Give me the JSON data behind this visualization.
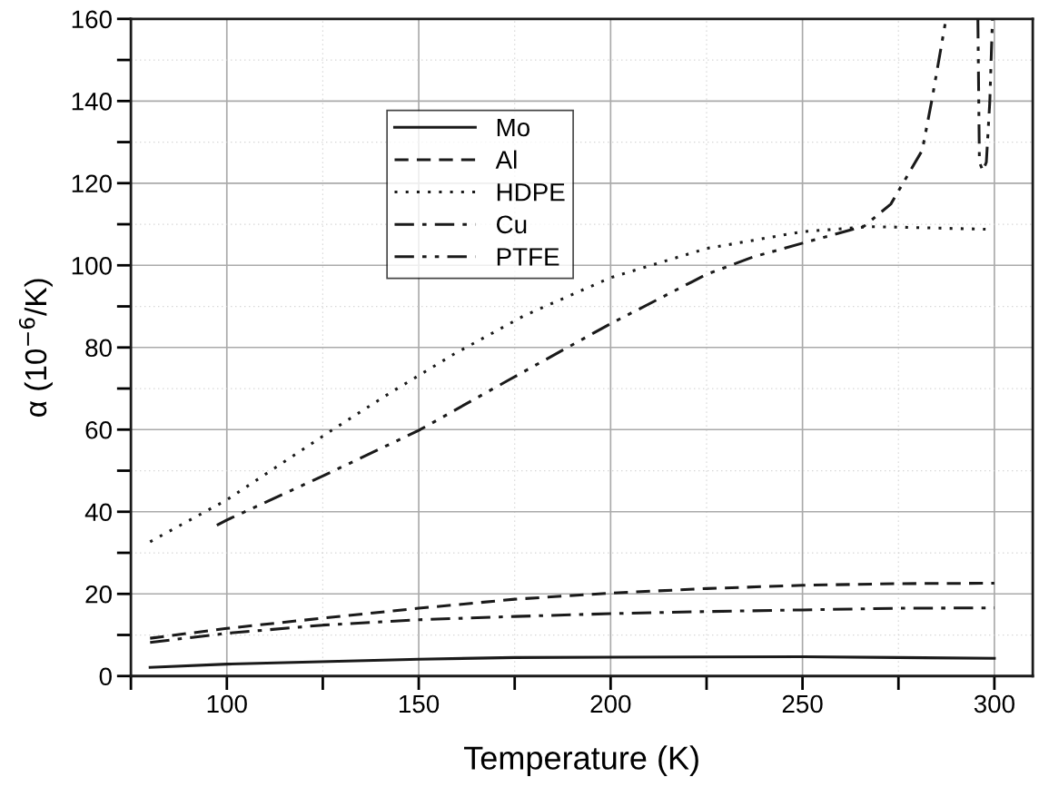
{
  "chart_data": {
    "type": "line",
    "xlabel": "Temperature (K)",
    "ylabel": "α (10$^{−6}$/K)",
    "xlim": [
      75,
      310
    ],
    "ylim": [
      0,
      160
    ],
    "xticks": [
      {
        "value": 75,
        "label": null
      },
      100,
      {
        "value": 125,
        "label": null
      },
      150,
      {
        "value": 175,
        "label": null
      },
      200,
      {
        "value": 225,
        "label": null
      },
      250,
      {
        "value": 275,
        "label": null
      },
      300
    ],
    "yticks": [
      0,
      {
        "value": 10,
        "label": null
      },
      20,
      {
        "value": 30,
        "label": null
      },
      40,
      {
        "value": 50,
        "label": null
      },
      60,
      {
        "value": 70,
        "label": null
      },
      80,
      {
        "value": 90,
        "label": null
      },
      100,
      {
        "value": 110,
        "label": null
      },
      120,
      {
        "value": 130,
        "label": null
      },
      140,
      {
        "value": 150,
        "label": null
      },
      160
    ],
    "grid": true,
    "legend": "top left",
    "marker": "none",
    "series": [
      {
        "name": "Mo",
        "color": "#1a1a1a",
        "line_style": "solid",
        "x": [
          80,
          100,
          150,
          175,
          200,
          250,
          275,
          300
        ],
        "values": [
          2.1,
          2.9,
          4.1,
          4.5,
          4.6,
          4.7,
          4.5,
          4.3
        ]
      },
      {
        "name": "Al",
        "color": "#1a1a1a",
        "line_style": "dashed",
        "x": [
          80,
          100,
          125,
          150,
          175,
          200,
          225,
          250,
          275,
          300
        ],
        "values": [
          9.2,
          11.6,
          14.1,
          16.5,
          18.7,
          20.2,
          21.3,
          22.1,
          22.5,
          22.6
        ]
      },
      {
        "name": "HDPE",
        "color": "#1a1a1a",
        "line_style": "dotted",
        "x": [
          80,
          100,
          127.6,
          142.3,
          159.2,
          177.6,
          200,
          225,
          250,
          261.6,
          267.8,
          275,
          288,
          297.7
        ],
        "values": [
          32.7,
          42.9,
          60,
          68.8,
          78.4,
          87.8,
          97,
          104.1,
          108.2,
          109,
          109.4,
          109.3,
          109,
          108.8
        ]
      },
      {
        "name": "Cu",
        "color": "#1a1a1a",
        "line_style": "dashdot",
        "x": [
          80,
          100,
          125,
          150,
          175,
          200,
          225,
          250,
          275,
          300
        ],
        "values": [
          8.2,
          10.4,
          12.4,
          13.7,
          14.5,
          15.2,
          15.7,
          16.1,
          16.5,
          16.6
        ]
      },
      {
        "name": "PTFE",
        "color": "#1a1a1a",
        "line_style": "dashdotdot",
        "x": [
          97.4,
          100,
          125,
          150,
          173.5,
          200,
          225,
          237,
          250,
          266,
          273,
          281.2,
          283.8,
          287.4,
          291,
          295.7,
          296.1,
          297,
          297.9,
          298.8,
          299.5
        ],
        "values": [
          36.7,
          38,
          48.7,
          59.8,
          72.1,
          85.8,
          97.8,
          102,
          105.4,
          109.5,
          114.9,
          128,
          140.7,
          160,
          null,
          160,
          125.1,
          123,
          125.1,
          139.8,
          160
        ]
      }
    ]
  }
}
